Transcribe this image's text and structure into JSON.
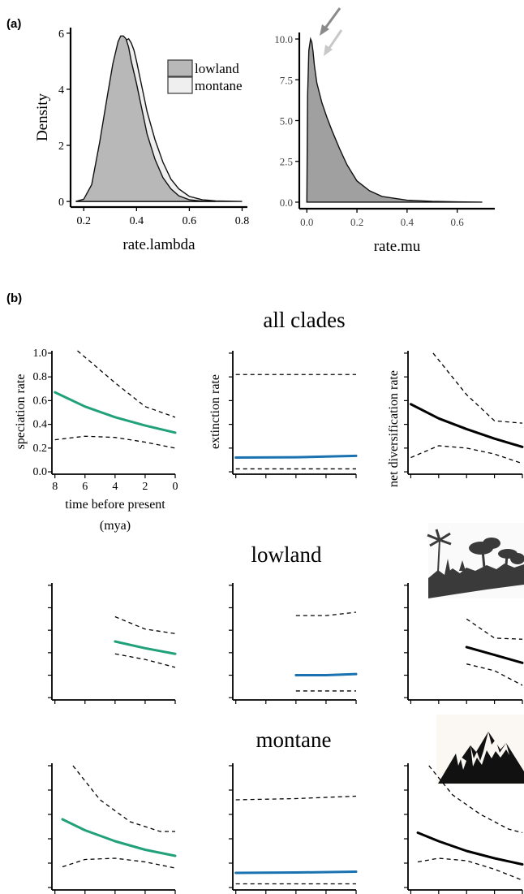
{
  "panel_a": {
    "tag": "(a)",
    "legend": [
      "lowland",
      "montane"
    ],
    "colors": {
      "lowland": "#b8b8b8",
      "montane": "#efefef",
      "mu": "#a0a0a0",
      "arrow_dark": "#8a8a8a",
      "arrow_light": "#c8c8c8"
    }
  },
  "panel_b": {
    "tag": "(b)",
    "rows": [
      {
        "title": "all clades"
      },
      {
        "title": "lowland",
        "icon": "rainforest-silhouette-icon"
      },
      {
        "title": "montane",
        "icon": "mountains-silhouette-icon"
      }
    ],
    "ylabels": [
      "speciation rate",
      "extinction rate",
      "net diversification rate"
    ],
    "xlabel_line1": "time before present",
    "xlabel_line2": "(mya)",
    "colors": {
      "speciation": "#21a17a",
      "extinction": "#1a72b0",
      "net": "#000000"
    }
  },
  "chart_data": [
    {
      "type": "area",
      "xlabel": "rate.lambda",
      "ylabel": "Density",
      "xlim": [
        0.15,
        0.82
      ],
      "ylim": [
        -0.2,
        6.2
      ],
      "xticks": [
        0.2,
        0.4,
        0.6,
        0.8
      ],
      "xtick_labels": [
        "0.2",
        "0.4",
        "0.6",
        "0.8"
      ],
      "yticks": [
        0,
        2,
        4,
        6
      ],
      "ytick_labels": [
        "0",
        "2",
        "4",
        "6"
      ],
      "legend": "top-right",
      "series": [
        {
          "name": "montane",
          "x": [
            0.17,
            0.2,
            0.23,
            0.26,
            0.29,
            0.31,
            0.33,
            0.35,
            0.36,
            0.37,
            0.38,
            0.39,
            0.4,
            0.42,
            0.44,
            0.47,
            0.5,
            0.53,
            0.56,
            0.6,
            0.65,
            0.7,
            0.8
          ],
          "y": [
            0.0,
            0.05,
            0.4,
            1.6,
            3.1,
            4.2,
            5.1,
            5.6,
            5.75,
            5.8,
            5.65,
            5.4,
            5.0,
            4.1,
            3.2,
            2.2,
            1.4,
            0.8,
            0.45,
            0.18,
            0.06,
            0.02,
            0.0
          ]
        },
        {
          "name": "lowland",
          "x": [
            0.17,
            0.2,
            0.23,
            0.26,
            0.29,
            0.31,
            0.33,
            0.34,
            0.35,
            0.36,
            0.37,
            0.38,
            0.4,
            0.42,
            0.44,
            0.47,
            0.5,
            0.53,
            0.56,
            0.6,
            0.65,
            0.7
          ],
          "y": [
            0.0,
            0.08,
            0.6,
            2.1,
            3.8,
            4.9,
            5.7,
            5.9,
            5.9,
            5.8,
            5.5,
            5.0,
            4.2,
            3.3,
            2.4,
            1.5,
            0.85,
            0.45,
            0.2,
            0.06,
            0.01,
            0.0
          ]
        }
      ]
    },
    {
      "type": "area",
      "xlabel": "rate.mu",
      "ylabel": "",
      "xlim": [
        -0.03,
        0.75
      ],
      "ylim": [
        -0.4,
        10.4
      ],
      "xticks": [
        0.0,
        0.2,
        0.4,
        0.6
      ],
      "xtick_labels": [
        "0.0",
        "0.2",
        "0.4",
        "0.6"
      ],
      "yticks": [
        0.0,
        2.5,
        5.0,
        7.5,
        10.0
      ],
      "ytick_labels": [
        "0.0",
        "2.5",
        "5.0",
        "7.5",
        "10.0"
      ],
      "series": [
        {
          "name": "rate.mu",
          "x": [
            0.0,
            0.003,
            0.008,
            0.015,
            0.02,
            0.025,
            0.03,
            0.04,
            0.06,
            0.08,
            0.1,
            0.13,
            0.16,
            0.2,
            0.25,
            0.3,
            0.4,
            0.5,
            0.6,
            0.7
          ],
          "y": [
            0.0,
            6.5,
            9.3,
            10.0,
            9.8,
            9.2,
            8.4,
            7.3,
            6.1,
            5.2,
            4.4,
            3.3,
            2.3,
            1.3,
            0.7,
            0.35,
            0.12,
            0.05,
            0.02,
            0.0
          ]
        }
      ]
    },
    {
      "type": "line",
      "row": "all clades",
      "ylabel": "speciation rate",
      "xlabel": "time before present (mya)",
      "xlim": [
        8.2,
        0
      ],
      "ylim": [
        -0.02,
        1.02
      ],
      "xticks": [
        8,
        6,
        4,
        2,
        0
      ],
      "xtick_labels": [
        "8",
        "6",
        "4",
        "2",
        "0"
      ],
      "yticks": [
        0.0,
        0.2,
        0.4,
        0.6,
        0.8,
        1.0
      ],
      "ytick_labels": [
        "0.0",
        "0.2",
        "0.4",
        "0.6",
        "0.8",
        "1.0"
      ],
      "series": [
        {
          "role": "mean",
          "x": [
            8,
            6,
            4,
            2,
            0
          ],
          "y": [
            0.67,
            0.55,
            0.46,
            0.39,
            0.33
          ]
        },
        {
          "role": "upper",
          "x": [
            6.5,
            4,
            2,
            0
          ],
          "y": [
            1.02,
            0.75,
            0.55,
            0.46
          ]
        },
        {
          "role": "lower",
          "x": [
            8,
            6,
            4,
            2,
            0
          ],
          "y": [
            0.27,
            0.3,
            0.29,
            0.25,
            0.2
          ]
        }
      ]
    },
    {
      "type": "line",
      "row": "all clades",
      "ylabel": "extinction rate",
      "xlim": [
        8.2,
        0
      ],
      "ylim": [
        -0.02,
        1.02
      ],
      "series": [
        {
          "role": "mean",
          "x": [
            8,
            4,
            0
          ],
          "y": [
            0.12,
            0.123,
            0.135
          ]
        },
        {
          "role": "upper",
          "x": [
            8,
            0
          ],
          "y": [
            0.82,
            0.82
          ]
        },
        {
          "role": "lower",
          "x": [
            8,
            0
          ],
          "y": [
            0.025,
            0.025
          ]
        }
      ]
    },
    {
      "type": "line",
      "row": "all clades",
      "ylabel": "net diversification rate",
      "xlim": [
        8.2,
        0
      ],
      "ylim": [
        -0.02,
        1.02
      ],
      "series": [
        {
          "role": "mean",
          "x": [
            8,
            6,
            4,
            2,
            0
          ],
          "y": [
            0.57,
            0.45,
            0.36,
            0.28,
            0.21
          ]
        },
        {
          "role": "upper",
          "x": [
            6.4,
            4,
            2,
            0
          ],
          "y": [
            1.0,
            0.65,
            0.43,
            0.41
          ]
        },
        {
          "role": "lower",
          "x": [
            8,
            6,
            4,
            2,
            0
          ],
          "y": [
            0.12,
            0.22,
            0.2,
            0.15,
            0.07
          ]
        }
      ]
    },
    {
      "type": "line",
      "row": "lowland",
      "xlim": [
        8.2,
        0
      ],
      "ylim": [
        -0.02,
        1.02
      ],
      "series": [
        {
          "role": "mean",
          "x": [
            4,
            2,
            0
          ],
          "y": [
            0.5,
            0.44,
            0.39
          ]
        },
        {
          "role": "upper",
          "x": [
            4,
            2,
            0
          ],
          "y": [
            0.72,
            0.61,
            0.57
          ]
        },
        {
          "role": "lower",
          "x": [
            4,
            2,
            0
          ],
          "y": [
            0.39,
            0.34,
            0.27
          ]
        }
      ]
    },
    {
      "type": "line",
      "row": "lowland",
      "xlim": [
        8.2,
        0
      ],
      "ylim": [
        -0.02,
        1.02
      ],
      "series": [
        {
          "role": "mean",
          "x": [
            4,
            2,
            0
          ],
          "y": [
            0.2,
            0.2,
            0.21
          ]
        },
        {
          "role": "upper",
          "x": [
            4,
            2,
            0
          ],
          "y": [
            0.73,
            0.73,
            0.76
          ]
        },
        {
          "role": "lower",
          "x": [
            4,
            0
          ],
          "y": [
            0.06,
            0.06
          ]
        }
      ]
    },
    {
      "type": "line",
      "row": "lowland",
      "xlim": [
        8.2,
        0
      ],
      "ylim": [
        -0.02,
        1.02
      ],
      "series": [
        {
          "role": "mean",
          "x": [
            4,
            2,
            0
          ],
          "y": [
            0.45,
            0.38,
            0.31
          ]
        },
        {
          "role": "upper",
          "x": [
            4,
            2,
            0
          ],
          "y": [
            0.7,
            0.53,
            0.52
          ]
        },
        {
          "role": "lower",
          "x": [
            4,
            2,
            0
          ],
          "y": [
            0.3,
            0.24,
            0.11
          ]
        }
      ]
    },
    {
      "type": "line",
      "row": "montane",
      "xlim": [
        8.2,
        0
      ],
      "ylim": [
        -0.02,
        1.02
      ],
      "series": [
        {
          "role": "mean",
          "x": [
            7.5,
            6,
            4,
            2,
            0
          ],
          "y": [
            0.56,
            0.47,
            0.38,
            0.31,
            0.26
          ]
        },
        {
          "role": "upper",
          "x": [
            6.8,
            5,
            3,
            1,
            0
          ],
          "y": [
            1.0,
            0.72,
            0.54,
            0.46,
            0.46
          ]
        },
        {
          "role": "lower",
          "x": [
            7.5,
            6,
            4,
            2,
            0
          ],
          "y": [
            0.17,
            0.23,
            0.24,
            0.21,
            0.16
          ]
        }
      ]
    },
    {
      "type": "line",
      "row": "montane",
      "xlim": [
        8.2,
        0
      ],
      "ylim": [
        -0.02,
        1.02
      ],
      "series": [
        {
          "role": "mean",
          "x": [
            8,
            4,
            0
          ],
          "y": [
            0.12,
            0.123,
            0.13
          ]
        },
        {
          "role": "upper",
          "x": [
            8,
            4,
            0
          ],
          "y": [
            0.72,
            0.73,
            0.75
          ]
        },
        {
          "role": "lower",
          "x": [
            8,
            0
          ],
          "y": [
            0.03,
            0.03
          ]
        }
      ]
    },
    {
      "type": "line",
      "row": "montane",
      "xlim": [
        8.2,
        0
      ],
      "ylim": [
        -0.02,
        1.02
      ],
      "series": [
        {
          "role": "mean",
          "x": [
            7.5,
            6,
            4,
            2,
            0
          ],
          "y": [
            0.45,
            0.38,
            0.3,
            0.24,
            0.19
          ]
        },
        {
          "role": "upper",
          "x": [
            6.7,
            5,
            3,
            1,
            0
          ],
          "y": [
            1.0,
            0.76,
            0.6,
            0.48,
            0.45
          ]
        },
        {
          "role": "lower",
          "x": [
            7.5,
            6,
            4,
            2,
            0
          ],
          "y": [
            0.21,
            0.24,
            0.22,
            0.15,
            0.06
          ]
        }
      ]
    }
  ]
}
